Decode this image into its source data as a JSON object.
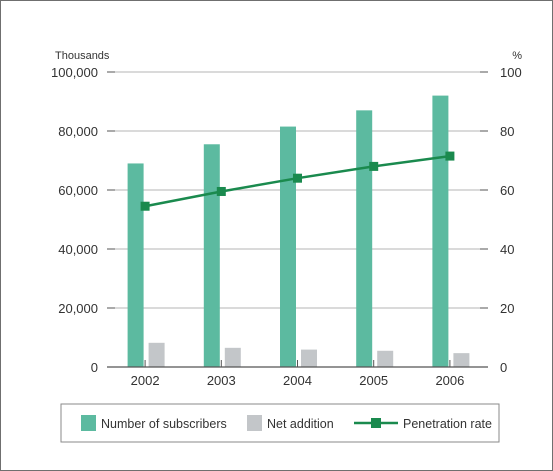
{
  "chart_data": {
    "type": "bar",
    "categories": [
      "2002",
      "2003",
      "2004",
      "2005",
      "2006"
    ],
    "series": [
      {
        "name": "Number of subscribers",
        "type": "bar",
        "axis": "left",
        "color": "#5cbaa0",
        "values": [
          69000,
          75500,
          81500,
          87000,
          92000
        ]
      },
      {
        "name": "Net addition",
        "type": "bar",
        "axis": "left",
        "color": "#c3c6c9",
        "values": [
          8200,
          6500,
          5900,
          5500,
          4700
        ]
      },
      {
        "name": "Penetration rate",
        "type": "line",
        "axis": "right",
        "color": "#1a8a4e",
        "marker": "square",
        "values": [
          54.5,
          59.5,
          64,
          68,
          71.5
        ]
      }
    ],
    "y_left": {
      "label": "Thousands",
      "min": 0,
      "max": 100000,
      "ticks": [
        "0",
        "20,000",
        "40,000",
        "60,000",
        "80,000",
        "100,000"
      ]
    },
    "y_right": {
      "label": "%",
      "min": 0,
      "max": 100,
      "ticks": [
        "0",
        "20",
        "40",
        "60",
        "80",
        "100"
      ]
    },
    "grid": true,
    "legend": "bottom"
  }
}
